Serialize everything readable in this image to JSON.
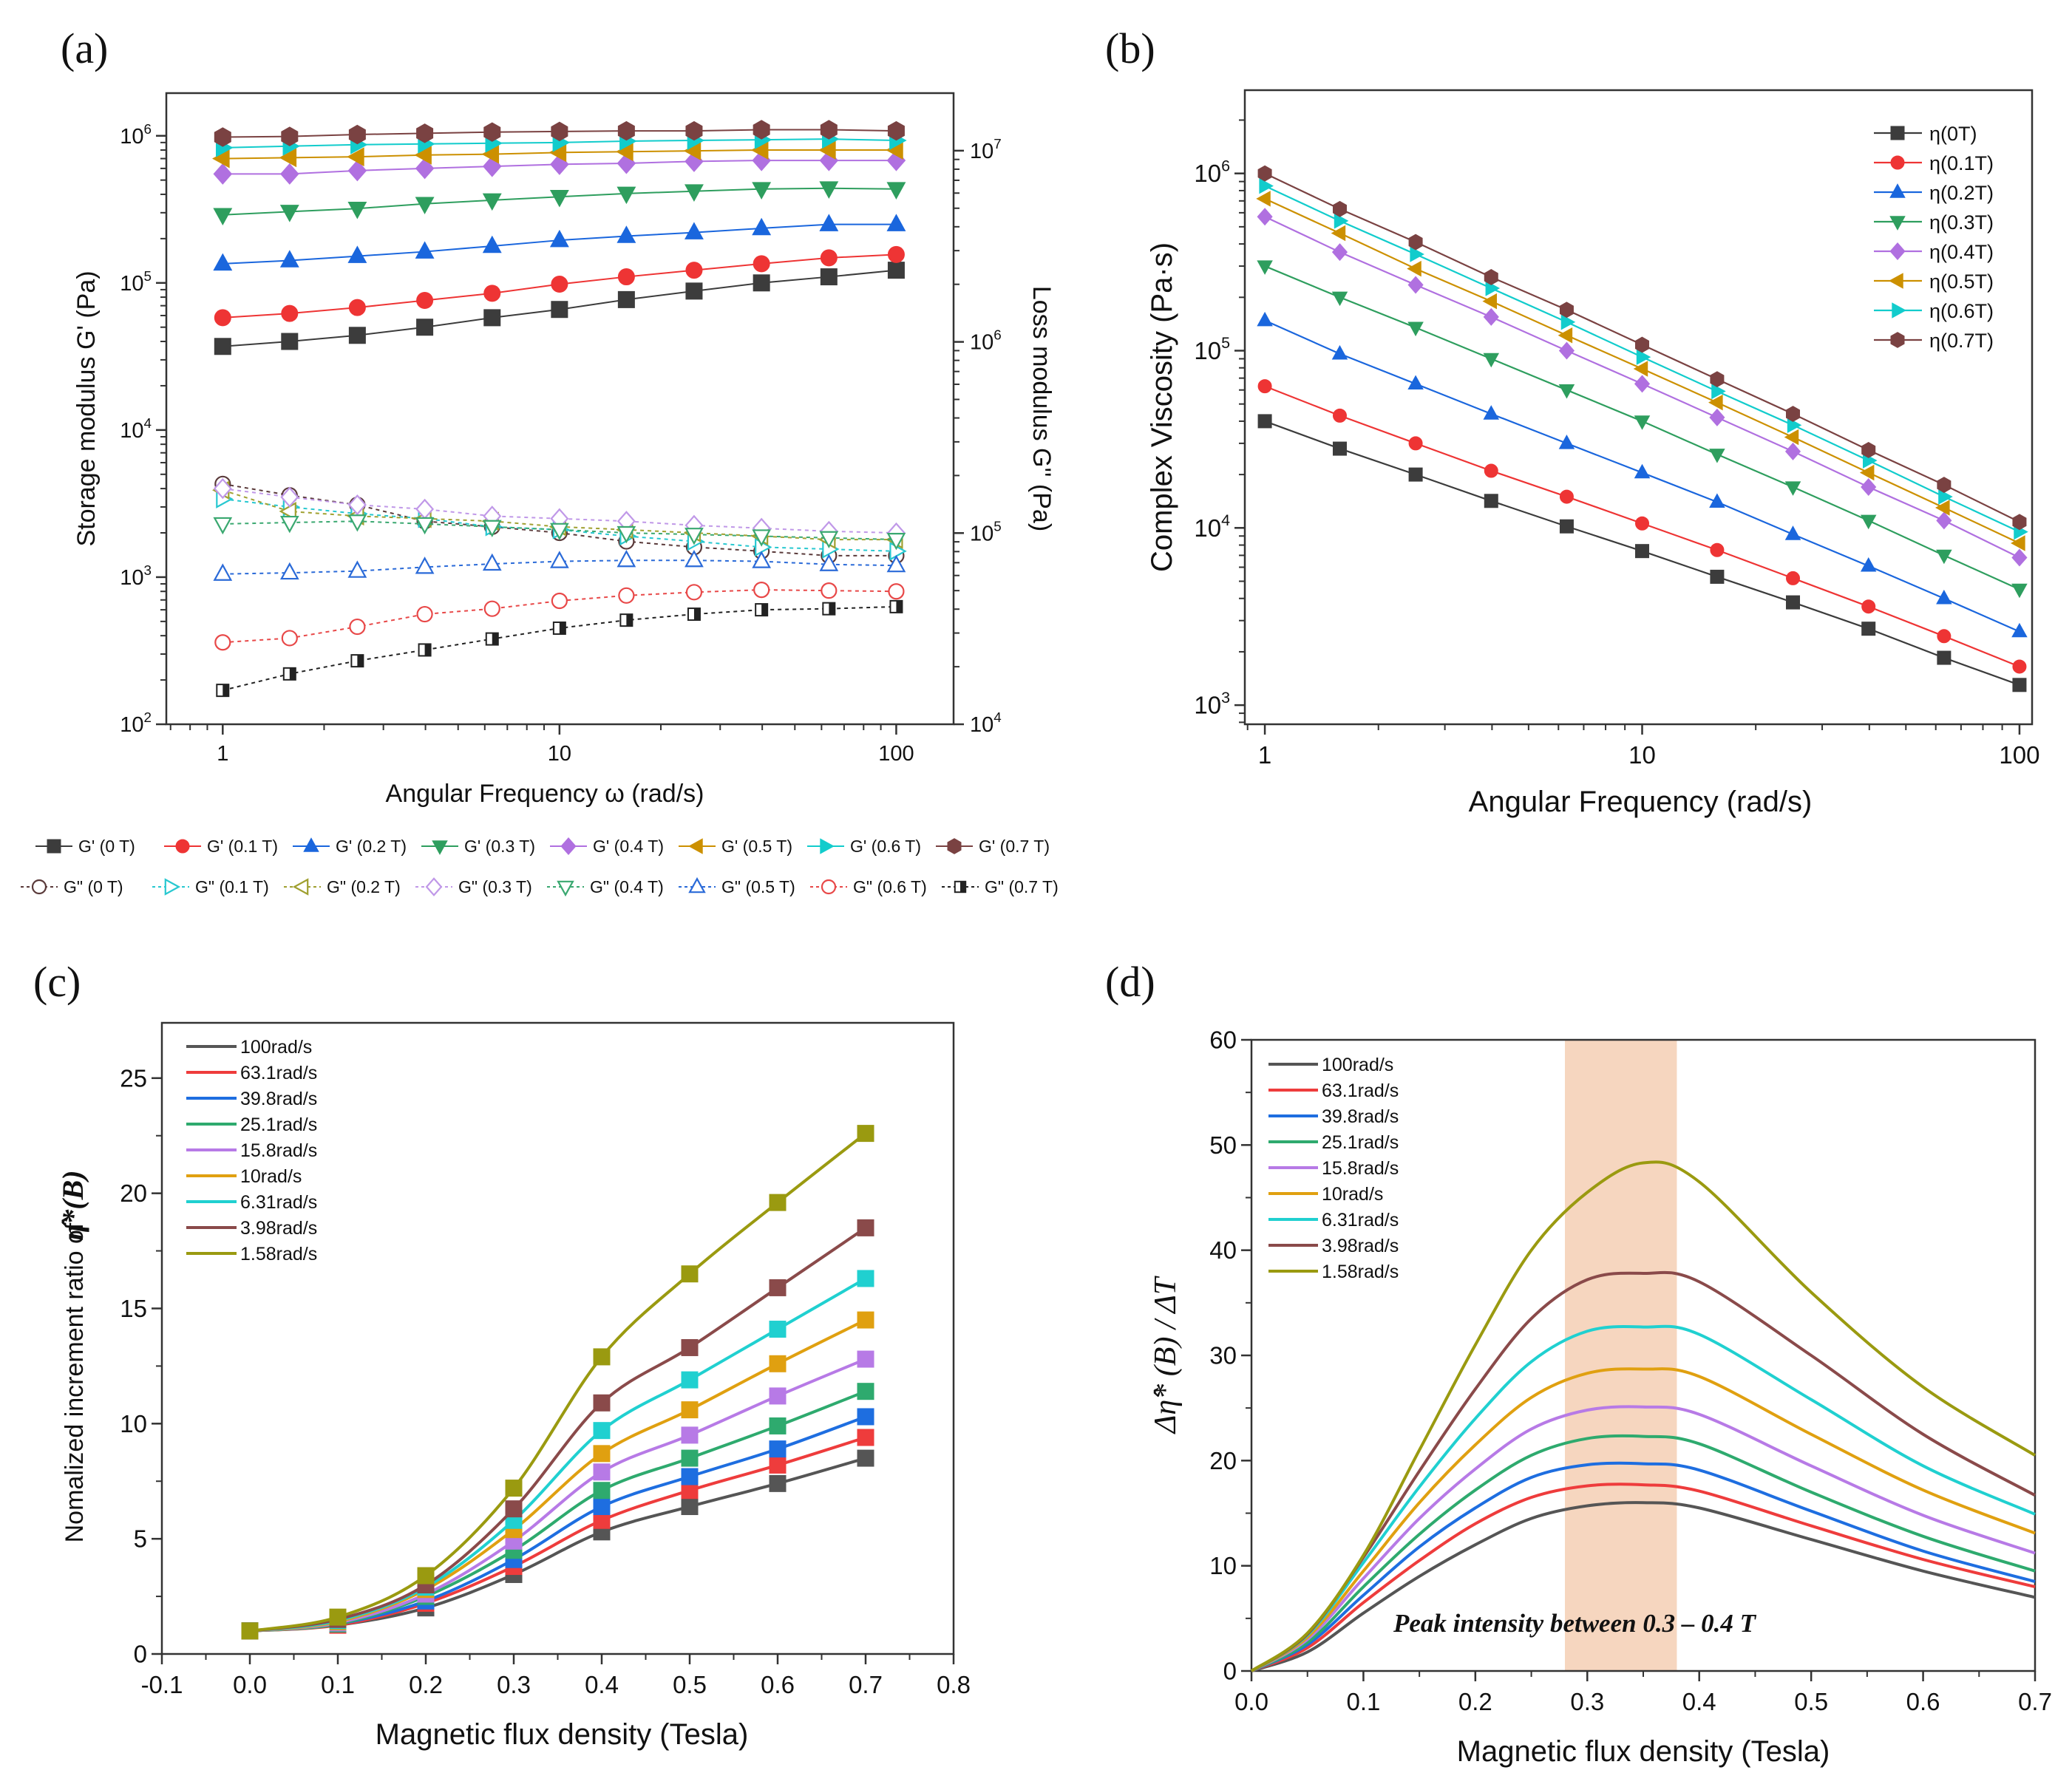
{
  "panels": {
    "a": "(a)",
    "b": "(b)",
    "c": "(c)",
    "d": "(d)"
  },
  "chart_data": [
    {
      "id": "a",
      "type": "line",
      "xlabel": "Angular Frequency ω (rad/s)",
      "ylabel": "Storage modulus G' (Pa)",
      "y2label": "Loss modulus G'' (Pa)",
      "xscale": "log",
      "yscale": "log",
      "y2scale": "log",
      "xlim": [
        0.68,
        148
      ],
      "ylim": [
        100,
        1950000
      ],
      "y2lim": [
        10000,
        20000000
      ],
      "xticks": {
        "values": [
          1,
          10,
          100
        ],
        "labels": [
          "1",
          "10",
          "100"
        ]
      },
      "yticks": {
        "values": [
          100,
          1000,
          10000,
          100000,
          1000000
        ],
        "labels": [
          "10^2",
          "10^3",
          "10^4",
          "10^5",
          "10^6"
        ]
      },
      "y2ticks": {
        "values": [
          10000,
          100000,
          1000000,
          10000000
        ],
        "labels": [
          "10^4",
          "10^5",
          "10^6",
          "10^7"
        ]
      },
      "grid": false,
      "legend_position": "below",
      "x": [
        1,
        1.58,
        2.51,
        3.98,
        6.31,
        10,
        15.8,
        25.1,
        39.8,
        63.1,
        100
      ],
      "series": [
        {
          "name": "G' (0 T)",
          "color": "#3c3c3c",
          "marker": "square",
          "filled": true,
          "dashed": false,
          "values": [
            37000,
            40000,
            44000,
            50000,
            58000,
            66000,
            77000,
            88000,
            100000,
            110000,
            122000
          ]
        },
        {
          "name": "G' (0.1 T)",
          "color": "#ee3434",
          "marker": "circle",
          "filled": true,
          "dashed": false,
          "values": [
            58000,
            62000,
            68000,
            76000,
            85000,
            98000,
            110000,
            122000,
            135000,
            148000,
            156000
          ]
        },
        {
          "name": "G' (0.2 T)",
          "color": "#1a66dd",
          "marker": "triangle-up",
          "filled": true,
          "dashed": false,
          "values": [
            135000,
            142000,
            152000,
            163000,
            178000,
            195000,
            208000,
            220000,
            235000,
            250000,
            250000
          ]
        },
        {
          "name": "G' (0.3 T)",
          "color": "#2e9e5e",
          "marker": "triangle-down",
          "filled": true,
          "dashed": false,
          "values": [
            290000,
            305000,
            320000,
            345000,
            365000,
            385000,
            405000,
            420000,
            435000,
            440000,
            435000
          ]
        },
        {
          "name": "G' (0.4 T)",
          "color": "#b070e0",
          "marker": "diamond",
          "filled": true,
          "dashed": false,
          "values": [
            550000,
            550000,
            580000,
            600000,
            620000,
            640000,
            650000,
            670000,
            680000,
            680000,
            680000
          ]
        },
        {
          "name": "G' (0.5 T)",
          "color": "#cc9000",
          "marker": "triangle-left",
          "filled": true,
          "dashed": false,
          "values": [
            700000,
            710000,
            720000,
            740000,
            750000,
            770000,
            780000,
            790000,
            800000,
            800000,
            800000
          ]
        },
        {
          "name": "G' (0.6 T)",
          "color": "#12cccc",
          "marker": "triangle-right",
          "filled": true,
          "dashed": false,
          "values": [
            830000,
            850000,
            870000,
            880000,
            890000,
            900000,
            920000,
            930000,
            940000,
            950000,
            930000
          ]
        },
        {
          "name": "G' (0.7 T)",
          "color": "#7a4242",
          "marker": "hexagon",
          "filled": true,
          "dashed": false,
          "values": [
            980000,
            990000,
            1020000,
            1040000,
            1060000,
            1070000,
            1080000,
            1080000,
            1100000,
            1100000,
            1080000
          ]
        },
        {
          "name": "G\" (0 T)",
          "color": "#5a3a3a",
          "marker": "circle",
          "filled": false,
          "dashed": true,
          "values": [
            4300,
            3600,
            3100,
            2400,
            2200,
            2000,
            1750,
            1600,
            1500,
            1400,
            1400
          ]
        },
        {
          "name": "G\" (0.1 T)",
          "color": "#28c8d0",
          "marker": "triangle-right",
          "filled": false,
          "dashed": true,
          "values": [
            3400,
            3000,
            2700,
            2500,
            2200,
            2100,
            1900,
            1750,
            1600,
            1550,
            1500
          ]
        },
        {
          "name": "G\" (0.2 T)",
          "color": "#a0a030",
          "marker": "triangle-left",
          "filled": false,
          "dashed": true,
          "values": [
            3900,
            2800,
            2600,
            2500,
            2400,
            2200,
            2100,
            2000,
            1900,
            1800,
            1800
          ]
        },
        {
          "name": "G\" (0.3 T)",
          "color": "#c098e8",
          "marker": "diamond",
          "filled": false,
          "dashed": true,
          "values": [
            4000,
            3500,
            3100,
            2900,
            2600,
            2500,
            2400,
            2250,
            2150,
            2050,
            2000
          ]
        },
        {
          "name": "G\" (0.4 T)",
          "color": "#3aa870",
          "marker": "triangle-down",
          "filled": false,
          "dashed": true,
          "values": [
            2300,
            2350,
            2400,
            2300,
            2200,
            2100,
            2000,
            1950,
            1900,
            1850,
            1800
          ]
        },
        {
          "name": "G\" (0.5 T)",
          "color": "#2a6ad8",
          "marker": "triangle-up",
          "filled": false,
          "dashed": true,
          "values": [
            1050,
            1070,
            1100,
            1170,
            1230,
            1280,
            1300,
            1300,
            1280,
            1220,
            1200
          ]
        },
        {
          "name": "G\" (0.6 T)",
          "color": "#e84848",
          "marker": "circle",
          "filled": false,
          "dashed": true,
          "values": [
            360,
            385,
            460,
            560,
            610,
            690,
            750,
            790,
            820,
            810,
            800
          ]
        },
        {
          "name": "G\" (0.7 T)",
          "color": "#222222",
          "marker": "half-square",
          "filled": false,
          "dashed": true,
          "values": [
            170,
            220,
            270,
            320,
            380,
            450,
            510,
            560,
            600,
            610,
            630
          ]
        }
      ]
    },
    {
      "id": "b",
      "type": "line",
      "xlabel": "Angular Frequency (rad/s)",
      "ylabel": "Complex Viscosity (Pa·s)",
      "xscale": "log",
      "yscale": "log",
      "xlim": [
        0.885,
        108
      ],
      "ylim": [
        780,
        2950000
      ],
      "xticks": {
        "values": [
          1,
          10,
          100
        ],
        "labels": [
          "1",
          "10",
          "100"
        ]
      },
      "yticks": {
        "values": [
          1000,
          10000,
          100000,
          1000000
        ],
        "labels": [
          "10^3",
          "10^4",
          "10^5",
          "10^6"
        ]
      },
      "grid": false,
      "legend_position": "top-right",
      "x": [
        1,
        1.58,
        2.51,
        3.98,
        6.31,
        10,
        15.8,
        25.1,
        39.8,
        63.1,
        100
      ],
      "series": [
        {
          "name": "η(0T)",
          "color": "#3c3c3c",
          "marker": "square",
          "values": [
            40000,
            28000,
            20000,
            14200,
            10200,
            7400,
            5300,
            3800,
            2700,
            1850,
            1300
          ]
        },
        {
          "name": "η(0.1T)",
          "color": "#ee3434",
          "marker": "circle",
          "values": [
            63000,
            43000,
            30000,
            21000,
            15000,
            10600,
            7500,
            5200,
            3600,
            2450,
            1650
          ]
        },
        {
          "name": "η(0.2T)",
          "color": "#1a66dd",
          "marker": "triangle-up",
          "values": [
            148000,
            96000,
            65000,
            44000,
            30000,
            20500,
            14000,
            9200,
            6100,
            4000,
            2600
          ]
        },
        {
          "name": "η(0.3T)",
          "color": "#2e9e5e",
          "marker": "triangle-down",
          "values": [
            300000,
            200000,
            135000,
            90000,
            60000,
            40000,
            26000,
            17000,
            11000,
            7000,
            4500
          ]
        },
        {
          "name": "η(0.4T)",
          "color": "#b070e0",
          "marker": "diamond",
          "values": [
            570000,
            360000,
            235000,
            155000,
            100000,
            65000,
            42000,
            27000,
            17000,
            11000,
            6800
          ]
        },
        {
          "name": "η(0.5T)",
          "color": "#cc9000",
          "marker": "triangle-left",
          "values": [
            720000,
            460000,
            290000,
            190000,
            122000,
            79000,
            51000,
            32500,
            20500,
            13000,
            8200
          ]
        },
        {
          "name": "η(0.6T)",
          "color": "#12cccc",
          "marker": "triangle-right",
          "values": [
            850000,
            540000,
            350000,
            225000,
            145000,
            92000,
            59000,
            38000,
            24000,
            15000,
            9500
          ]
        },
        {
          "name": "η(0.7T)",
          "color": "#7a4242",
          "marker": "hexagon",
          "values": [
            1000000,
            630000,
            410000,
            260000,
            170000,
            108000,
            69000,
            44000,
            27500,
            17500,
            10800
          ]
        }
      ]
    },
    {
      "id": "c",
      "type": "scatter",
      "xlabel": "Magnetic flux density (Tesla)",
      "ylabel": "Nomalized increment ratio of",
      "ylabel_symbol": "η̂*(B)",
      "xscale": "linear",
      "yscale": "linear",
      "xlim": [
        -0.1,
        0.8
      ],
      "ylim": [
        0,
        27.4
      ],
      "xticks": {
        "values": [
          -0.1,
          0,
          0.1,
          0.2,
          0.3,
          0.4,
          0.5,
          0.6,
          0.7,
          0.8
        ],
        "labels": [
          "-0.1",
          "0.0",
          "0.1",
          "0.2",
          "0.3",
          "0.4",
          "0.5",
          "0.6",
          "0.7",
          "0.8"
        ]
      },
      "yticks": {
        "values": [
          0,
          5,
          10,
          15,
          20,
          25
        ],
        "labels": [
          "0",
          "5",
          "10",
          "15",
          "20",
          "25"
        ]
      },
      "grid": false,
      "legend_position": "top-left",
      "fit_curves": true,
      "x": [
        0,
        0.1,
        0.2,
        0.3,
        0.4,
        0.5,
        0.6,
        0.7
      ],
      "series": [
        {
          "name": "100rad/s",
          "color": "#555555",
          "values": [
            1,
            1.25,
            2.0,
            3.45,
            5.3,
            6.4,
            7.4,
            8.5
          ]
        },
        {
          "name": "63.1rad/s",
          "color": "#ee3c3c",
          "values": [
            1,
            1.25,
            2.2,
            3.8,
            5.8,
            7.1,
            8.2,
            9.4
          ]
        },
        {
          "name": "39.8rad/s",
          "color": "#1e6ee0",
          "values": [
            1,
            1.3,
            2.3,
            4.1,
            6.4,
            7.7,
            8.9,
            10.3
          ]
        },
        {
          "name": "25.1rad/s",
          "color": "#2eaa6e",
          "values": [
            1,
            1.3,
            2.5,
            4.5,
            7.1,
            8.5,
            9.9,
            11.4
          ]
        },
        {
          "name": "15.8rad/s",
          "color": "#b77ae6",
          "values": [
            1,
            1.35,
            2.6,
            4.9,
            7.9,
            9.5,
            11.2,
            12.8
          ]
        },
        {
          "name": "10rad/s",
          "color": "#e0a010",
          "values": [
            1,
            1.4,
            2.8,
            5.4,
            8.7,
            10.6,
            12.6,
            14.5
          ]
        },
        {
          "name": "6.31rad/s",
          "color": "#20d0d0",
          "values": [
            1,
            1.45,
            2.9,
            5.8,
            9.7,
            11.9,
            14.1,
            16.3
          ]
        },
        {
          "name": "3.98rad/s",
          "color": "#8a4a4a",
          "values": [
            1,
            1.5,
            3.0,
            6.3,
            10.9,
            13.3,
            15.9,
            18.5
          ]
        },
        {
          "name": "1.58rad/s",
          "color": "#9a9a10",
          "values": [
            1,
            1.6,
            3.4,
            7.2,
            12.9,
            16.5,
            19.6,
            22.6
          ]
        }
      ]
    },
    {
      "id": "d",
      "type": "line",
      "xlabel": "Magnetic flux density (Tesla)",
      "ylabel": "Δη̂* (B) / ΔT",
      "xscale": "linear",
      "yscale": "linear",
      "xlim": [
        0,
        0.7
      ],
      "ylim": [
        0,
        60
      ],
      "xticks": {
        "values": [
          0,
          0.1,
          0.2,
          0.3,
          0.4,
          0.5,
          0.6,
          0.7
        ],
        "labels": [
          "0.0",
          "0.1",
          "0.2",
          "0.3",
          "0.4",
          "0.5",
          "0.6",
          "0.7"
        ]
      },
      "yticks": {
        "values": [
          0,
          10,
          20,
          30,
          40,
          50,
          60
        ],
        "labels": [
          "0",
          "10",
          "20",
          "30",
          "40",
          "50",
          "60"
        ]
      },
      "grid": false,
      "legend_position": "top-left",
      "highlight_band": {
        "x_from": 0.28,
        "x_to": 0.38,
        "color": "#f6d6bf"
      },
      "annotation": "Peak intensity between 0.3 – 0.4 T",
      "x": [
        0,
        0.05,
        0.1,
        0.15,
        0.2,
        0.25,
        0.3,
        0.35,
        0.4,
        0.5,
        0.6,
        0.7
      ],
      "series": [
        {
          "name": "100rad/s",
          "color": "#555555",
          "values": [
            0,
            1.8,
            5.5,
            9,
            12,
            14.5,
            15.7,
            16,
            15.5,
            12.5,
            9.5,
            7.0
          ]
        },
        {
          "name": "63.1rad/s",
          "color": "#ee3c3c",
          "values": [
            0,
            2.2,
            6.5,
            10.5,
            14,
            16.5,
            17.6,
            17.7,
            17.1,
            13.8,
            10.6,
            8.0
          ]
        },
        {
          "name": "39.8rad/s",
          "color": "#1e6ee0",
          "values": [
            0,
            2.5,
            7.2,
            11.8,
            15.5,
            18.4,
            19.6,
            19.7,
            19.1,
            15.2,
            11.4,
            8.5
          ]
        },
        {
          "name": "25.1rad/s",
          "color": "#2eaa6e",
          "values": [
            0,
            2.7,
            8,
            13,
            17.2,
            20.5,
            22.1,
            22.3,
            21.6,
            17,
            12.8,
            9.5
          ]
        },
        {
          "name": "15.8rad/s",
          "color": "#b77ae6",
          "values": [
            0,
            3,
            8.8,
            14.5,
            19.2,
            23,
            24.8,
            25.1,
            24.4,
            19.5,
            14.8,
            11.2
          ]
        },
        {
          "name": "10rad/s",
          "color": "#e0a010",
          "values": [
            0,
            3.2,
            9.5,
            16,
            21.5,
            26,
            28.3,
            28.7,
            28,
            22.5,
            17.2,
            13.1
          ]
        },
        {
          "name": "6.31rad/s",
          "color": "#20d0d0",
          "values": [
            0,
            3.4,
            10.3,
            17.5,
            24,
            29.4,
            32.3,
            32.7,
            32,
            25.8,
            19.5,
            14.9
          ]
        },
        {
          "name": "3.98rad/s",
          "color": "#8a4a4a",
          "values": [
            0,
            3.5,
            10.8,
            19,
            26.8,
            33.5,
            37.2,
            37.8,
            37,
            30,
            22.5,
            16.7
          ]
        },
        {
          "name": "1.58rad/s",
          "color": "#9a9a10",
          "values": [
            0,
            3.6,
            11,
            21,
            31,
            40,
            45.5,
            48.3,
            46.5,
            36,
            27,
            20.5
          ]
        }
      ]
    }
  ]
}
